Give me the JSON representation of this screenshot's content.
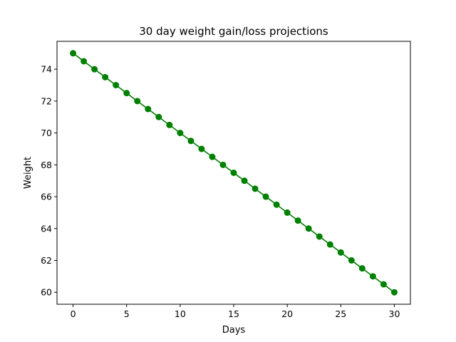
{
  "chart_data": {
    "type": "line",
    "title": "30 day weight gain/loss projections",
    "xlabel": "Days",
    "ylabel": "Weight",
    "xlim": [
      -1.5,
      31.5
    ],
    "ylim": [
      59.25,
      75.75
    ],
    "x_ticks": [
      0,
      5,
      10,
      15,
      20,
      25,
      30
    ],
    "y_ticks": [
      60,
      62,
      64,
      66,
      68,
      70,
      72,
      74
    ],
    "grid": false,
    "legend": "none",
    "color": "#008000",
    "marker": "circle",
    "series": [
      {
        "x": [
          0,
          1,
          2,
          3,
          4,
          5,
          6,
          7,
          8,
          9,
          10,
          11,
          12,
          13,
          14,
          15,
          16,
          17,
          18,
          19,
          20,
          21,
          22,
          23,
          24,
          25,
          26,
          27,
          28,
          29,
          30
        ],
        "values": [
          75,
          74.5,
          74,
          73.5,
          73,
          72.5,
          72,
          71.5,
          71,
          70.5,
          70,
          69.5,
          69,
          68.5,
          68,
          67.5,
          67,
          66.5,
          66,
          65.5,
          65,
          64.5,
          64,
          63.5,
          63,
          62.5,
          62,
          61.5,
          61,
          60.5,
          60
        ]
      }
    ]
  }
}
